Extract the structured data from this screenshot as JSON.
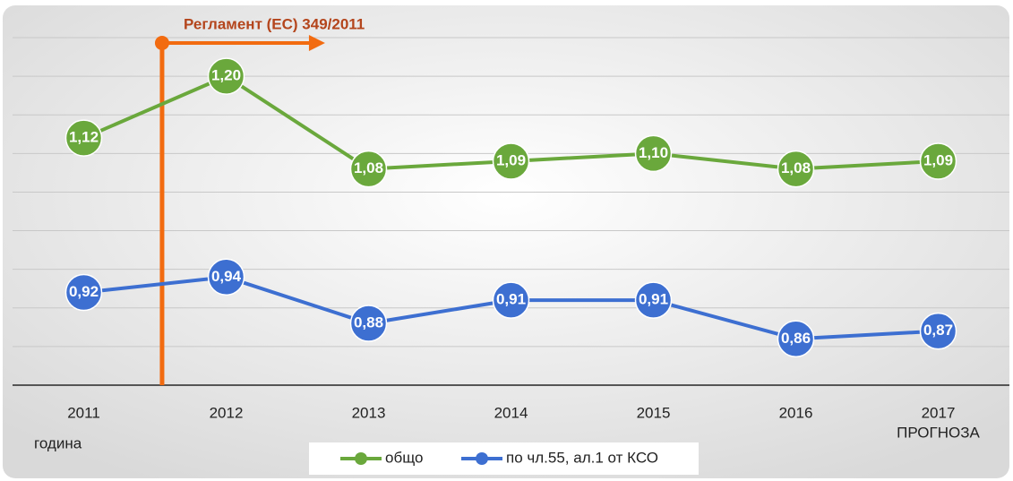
{
  "chart_data": {
    "type": "line",
    "categories": [
      "2011",
      "2012",
      "2013",
      "2014",
      "2015",
      "2016",
      "2017"
    ],
    "category_note": "ПРОГНОЗА",
    "x_label": "година",
    "annotation": "Регламент (ЕС) 349/2011",
    "series": [
      {
        "name": "общо",
        "color": "#6aa83c",
        "values": [
          1.12,
          1.2,
          1.08,
          1.09,
          1.1,
          1.08,
          1.09
        ],
        "value_labels": [
          "1,12",
          "1,20",
          "1,08",
          "1,09",
          "1,10",
          "1,08",
          "1,09"
        ]
      },
      {
        "name": "по чл.55, ал.1 от КСО",
        "color": "#3d6fd1",
        "values": [
          0.92,
          0.94,
          0.88,
          0.91,
          0.91,
          0.86,
          0.87
        ],
        "value_labels": [
          "0,92",
          "0,94",
          "0,88",
          "0,91",
          "0,91",
          "0,86",
          "0,87"
        ]
      }
    ],
    "ylim": [
      0.8,
      1.25
    ],
    "yticks": [
      0.8,
      0.85,
      0.9,
      0.95,
      1.0,
      1.05,
      1.1,
      1.15,
      1.2,
      1.25
    ],
    "grid": true
  }
}
